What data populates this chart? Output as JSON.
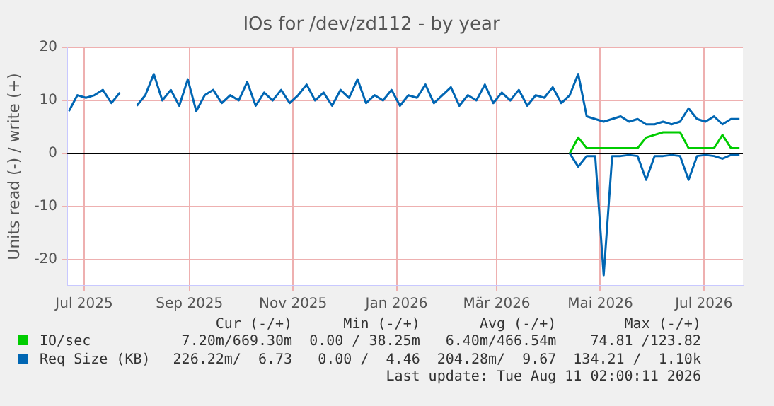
{
  "chart_data": {
    "type": "line",
    "title": "IOs for /dev/zd112 - by year",
    "ylabel": "Units read (-) / write (+)",
    "x": [
      "2025-06-22",
      "2025-06-27",
      "2025-07-02",
      "2025-07-07",
      "2025-07-12",
      "2025-07-17",
      "2025-07-22",
      "2025-07-27",
      "2025-08-01",
      "2025-08-06",
      "2025-08-11",
      "2025-08-16",
      "2025-08-21",
      "2025-08-26",
      "2025-08-31",
      "2025-09-05",
      "2025-09-10",
      "2025-09-15",
      "2025-09-20",
      "2025-09-25",
      "2025-09-30",
      "2025-10-05",
      "2025-10-10",
      "2025-10-15",
      "2025-10-20",
      "2025-10-25",
      "2025-10-30",
      "2025-11-04",
      "2025-11-09",
      "2025-11-14",
      "2025-11-19",
      "2025-11-24",
      "2025-11-29",
      "2025-12-04",
      "2025-12-09",
      "2025-12-14",
      "2025-12-19",
      "2025-12-24",
      "2025-12-29",
      "2026-01-03",
      "2026-01-08",
      "2026-01-13",
      "2026-01-18",
      "2026-01-23",
      "2026-01-28",
      "2026-02-02",
      "2026-02-07",
      "2026-02-12",
      "2026-02-17",
      "2026-02-22",
      "2026-02-27",
      "2026-03-04",
      "2026-03-09",
      "2026-03-14",
      "2026-03-19",
      "2026-03-24",
      "2026-03-29",
      "2026-04-03",
      "2026-04-08",
      "2026-04-13",
      "2026-04-18",
      "2026-04-23",
      "2026-04-28",
      "2026-05-03",
      "2026-05-08",
      "2026-05-13",
      "2026-05-18",
      "2026-05-23",
      "2026-05-28",
      "2026-06-02",
      "2026-06-07",
      "2026-06-12",
      "2026-06-17",
      "2026-06-22",
      "2026-06-27",
      "2026-07-02",
      "2026-07-07",
      "2026-07-12",
      "2026-07-17",
      "2026-07-22"
    ],
    "series": [
      {
        "name": "IO/sec",
        "color": "#00cc00",
        "values": [
          null,
          null,
          null,
          null,
          null,
          null,
          null,
          null,
          null,
          null,
          null,
          null,
          null,
          null,
          null,
          null,
          null,
          null,
          null,
          null,
          null,
          null,
          null,
          null,
          null,
          null,
          null,
          null,
          null,
          null,
          null,
          null,
          null,
          null,
          null,
          null,
          null,
          null,
          null,
          null,
          null,
          null,
          null,
          null,
          null,
          null,
          null,
          null,
          null,
          null,
          null,
          null,
          null,
          null,
          null,
          null,
          null,
          null,
          null,
          0,
          3,
          1,
          1,
          1,
          1,
          1,
          1,
          1,
          3,
          3.5,
          4,
          4,
          4,
          1,
          1,
          1,
          1,
          3.5,
          1,
          1
        ]
      },
      {
        "name": "Req Size (KB)",
        "color": "#0066b3",
        "values": [
          8,
          11,
          10.5,
          11,
          12,
          9.5,
          11.5,
          null,
          9,
          11,
          15,
          10,
          12,
          9,
          14,
          8,
          11,
          12,
          9.5,
          11,
          10,
          13.5,
          9,
          11.5,
          10,
          12,
          9.5,
          11,
          13,
          10,
          11.5,
          9,
          12,
          10.5,
          14,
          9.5,
          11,
          10,
          12,
          9,
          11,
          10.5,
          13,
          9.5,
          11,
          12.5,
          9,
          11,
          10,
          13,
          9.5,
          11.5,
          10,
          12,
          9,
          11,
          10.5,
          12.5,
          9.5,
          11,
          15,
          7,
          6.5,
          6,
          6.5,
          7,
          6,
          6.5,
          5.5,
          5.5,
          6,
          5.5,
          6,
          8.5,
          6.5,
          6,
          7,
          5.5,
          6.5,
          6.5
        ]
      },
      {
        "color": "#0066b3",
        "values": [
          null,
          null,
          null,
          null,
          null,
          null,
          null,
          null,
          null,
          null,
          null,
          null,
          null,
          null,
          null,
          null,
          null,
          null,
          null,
          null,
          null,
          null,
          null,
          null,
          null,
          null,
          null,
          null,
          null,
          null,
          null,
          null,
          null,
          null,
          null,
          null,
          null,
          null,
          null,
          null,
          null,
          null,
          null,
          null,
          null,
          null,
          null,
          null,
          null,
          null,
          null,
          null,
          null,
          null,
          null,
          null,
          null,
          null,
          null,
          0,
          -2.5,
          -0.5,
          -0.5,
          -23,
          -0.5,
          -0.5,
          -0.3,
          -0.5,
          -5,
          -0.5,
          -0.5,
          -0.3,
          -0.5,
          -5,
          -0.5,
          -0.3,
          -0.5,
          -1,
          -0.3,
          -0.3
        ]
      }
    ],
    "xlim": [
      "2025-06-21",
      "2026-07-24"
    ],
    "xticks": [
      {
        "value": "2025-07-01",
        "label": "Jul 2025"
      },
      {
        "value": "2025-09-01",
        "label": "Sep 2025"
      },
      {
        "value": "2025-11-01",
        "label": "Nov 2025"
      },
      {
        "value": "2026-01-01",
        "label": "Jan 2026"
      },
      {
        "value": "2026-03-01",
        "label": "Mär 2026"
      },
      {
        "value": "2026-05-01",
        "label": "Mai 2026"
      },
      {
        "value": "2026-07-01",
        "label": "Jul 2026"
      }
    ],
    "ylim": [
      -25,
      20
    ],
    "yticks": [
      -20,
      -10,
      0,
      10,
      20
    ],
    "ref_lines": [
      {
        "axis": "y",
        "value": 0,
        "color": "#000000"
      }
    ],
    "grid": true,
    "legend": "bottom",
    "marker": "none",
    "line_style": "solid",
    "annotations": [
      "Cur (-/+)",
      "Min (-/+)",
      "Avg (-/+)",
      "Max (-/+)",
      "7.20m/669.30m",
      "0.00 / 38.25m",
      "6.40m/466.54m",
      "74.81 /123.82",
      "226.22m/  6.73",
      "0.00 /  4.46",
      "204.28m/  9.67",
      "134.21 /  1.10k",
      "Last update: Tue Aug 11 02:00:11 2026"
    ]
  }
}
